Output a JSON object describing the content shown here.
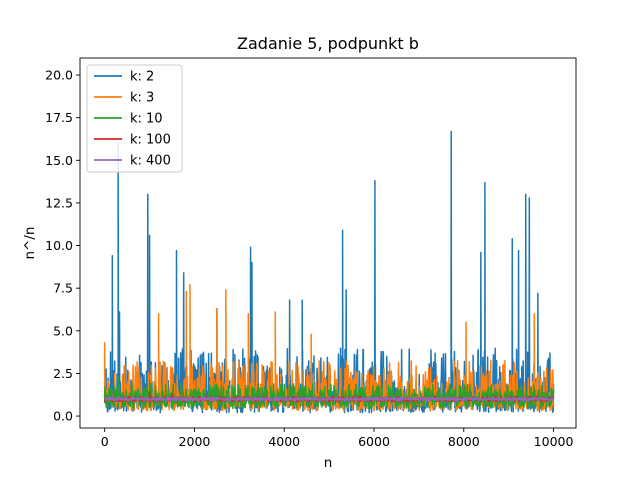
{
  "chart_data": {
    "type": "line",
    "title": "Zadanie 5, podpunkt b",
    "xlabel": "n",
    "ylabel": "n^/n",
    "xlim": [
      -550,
      10500
    ],
    "ylim": [
      -0.7,
      21.0
    ],
    "xticks": [
      0,
      2000,
      4000,
      6000,
      8000,
      10000
    ],
    "xtick_labels": [
      "0",
      "2000",
      "4000",
      "6000",
      "8000",
      "10000"
    ],
    "yticks": [
      0.0,
      2.5,
      5.0,
      7.5,
      10.0,
      12.5,
      15.0,
      17.5,
      20.0
    ],
    "ytick_labels": [
      "0.0",
      "2.5",
      "5.0",
      "7.5",
      "10.0",
      "12.5",
      "15.0",
      "17.5",
      "20.0"
    ],
    "legend_position": "upper-left",
    "x_range": [
      0,
      10000
    ],
    "series": [
      {
        "name": "k: 2",
        "color": "#1f77b4",
        "baseline": 1.0,
        "band": [
          0.2,
          4.0
        ],
        "peaks": [
          [
            170,
            9.4
          ],
          [
            300,
            16.0
          ],
          [
            330,
            6.1
          ],
          [
            960,
            13.0
          ],
          [
            1000,
            10.6
          ],
          [
            1600,
            9.7
          ],
          [
            1760,
            8.4
          ],
          [
            2500,
            6.3
          ],
          [
            3250,
            9.9
          ],
          [
            3280,
            9.0
          ],
          [
            4120,
            6.8
          ],
          [
            4400,
            6.8
          ],
          [
            5300,
            10.9
          ],
          [
            5380,
            7.4
          ],
          [
            6020,
            13.8
          ],
          [
            7720,
            16.7
          ],
          [
            8380,
            9.6
          ],
          [
            8470,
            13.7
          ],
          [
            9080,
            10.4
          ],
          [
            9220,
            9.7
          ],
          [
            9380,
            13.0
          ],
          [
            9460,
            12.8
          ],
          [
            9650,
            7.2
          ],
          [
            9920,
            3.7
          ]
        ]
      },
      {
        "name": "k: 3",
        "color": "#ff7f0e",
        "baseline": 1.0,
        "band": [
          0.3,
          3.3
        ],
        "peaks": [
          [
            0,
            4.3
          ],
          [
            1200,
            6.0
          ],
          [
            1820,
            7.3
          ],
          [
            1900,
            7.7
          ],
          [
            2500,
            6.3
          ],
          [
            2700,
            7.4
          ],
          [
            3200,
            6.0
          ],
          [
            3800,
            6.1
          ],
          [
            4600,
            4.8
          ],
          [
            8050,
            5.5
          ],
          [
            9570,
            6.0
          ]
        ]
      },
      {
        "name": "k: 10",
        "color": "#2ca02c",
        "baseline": 1.0,
        "band": [
          0.45,
          1.9
        ],
        "peaks": [
          [
            300,
            2.3
          ],
          [
            600,
            2.0
          ],
          [
            1000,
            2.1
          ],
          [
            1700,
            1.9
          ]
        ]
      },
      {
        "name": "k: 100",
        "color": "#d62728",
        "baseline": 1.0,
        "band": [
          0.85,
          1.15
        ],
        "peaks": [
          [
            1000,
            1.4
          ],
          [
            1500,
            1.3
          ]
        ]
      },
      {
        "name": "k: 400",
        "color": "#9467bd",
        "baseline": 1.0,
        "band": [
          0.9,
          1.1
        ],
        "peaks": []
      }
    ]
  }
}
